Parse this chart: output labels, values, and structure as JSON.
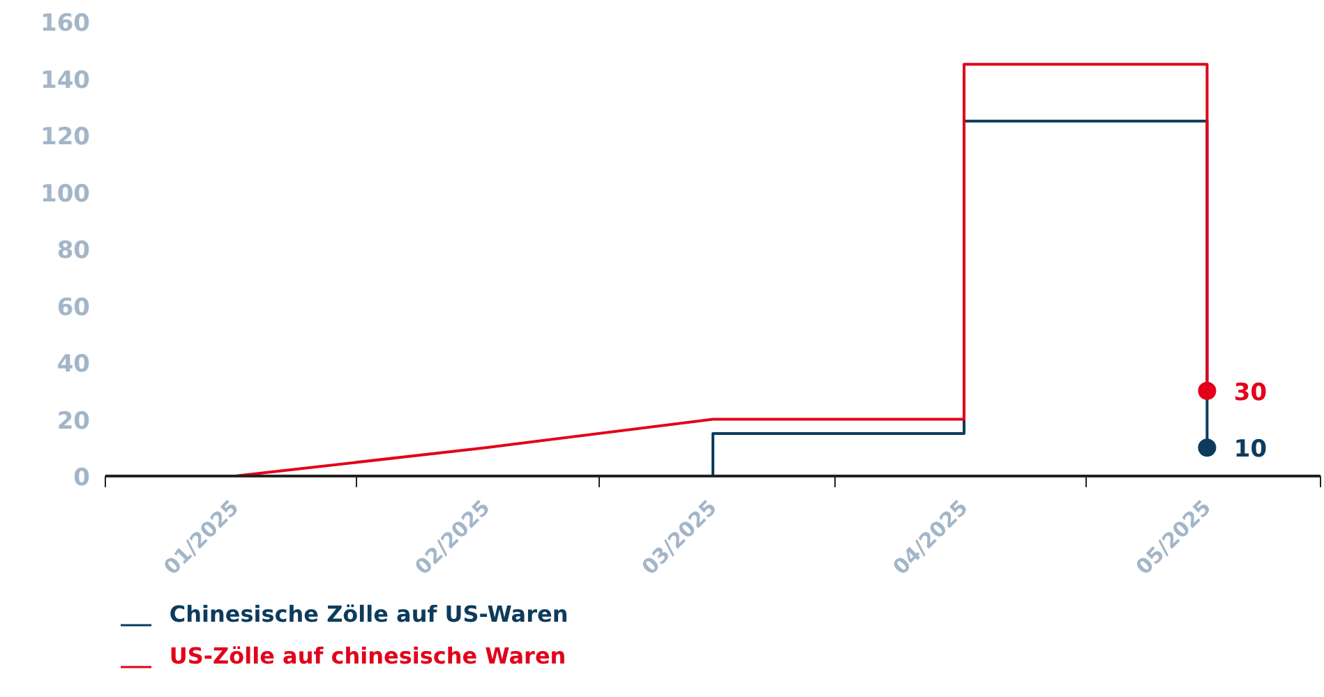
{
  "chart_data": {
    "type": "line",
    "xlim": [
      "2024-12-16",
      "2025-05-15"
    ],
    "xticks": [
      {
        "value": "2024-12-16",
        "label": null
      },
      {
        "value": "2025-01",
        "label": "01/2025"
      },
      {
        "value": "2025-01-16",
        "label": null
      },
      {
        "value": "2025-02",
        "label": "02/2025"
      },
      {
        "value": "2025-02-15",
        "label": null
      },
      {
        "value": "2025-03",
        "label": "03/2025"
      },
      {
        "value": "2025-03-16",
        "label": null
      },
      {
        "value": "2025-04",
        "label": "04/2025"
      },
      {
        "value": "2025-04-16",
        "label": null
      },
      {
        "value": "2025-05",
        "label": "05/2025"
      },
      {
        "value": "2025-05-15",
        "label": null
      }
    ],
    "ylim": [
      0,
      160
    ],
    "yticks": [
      0,
      20,
      40,
      60,
      80,
      100,
      120,
      140,
      160
    ],
    "grid": false,
    "legend": "bottom left",
    "series": [
      {
        "name": "Chinesische Zölle auf US-Waren",
        "color": "#0d3b5c",
        "x": [
          "2025-01",
          "2025-03",
          "2025-03",
          "2025-04",
          "2025-04",
          "2025-05",
          "2025-05"
        ],
        "values": [
          0,
          0,
          15,
          15,
          125,
          125,
          10
        ],
        "value_labels": [
          null,
          null,
          null,
          null,
          null,
          null,
          "10"
        ]
      },
      {
        "name": "US-Zölle auf chinesische Waren",
        "color": "#e2001a",
        "x": [
          "2025-01",
          "2025-02",
          "2025-03",
          "2025-04",
          "2025-04",
          "2025-05",
          "2025-05"
        ],
        "values": [
          0,
          10,
          20,
          20,
          145,
          145,
          30
        ],
        "value_labels": [
          null,
          null,
          null,
          null,
          null,
          null,
          "30"
        ]
      }
    ]
  }
}
